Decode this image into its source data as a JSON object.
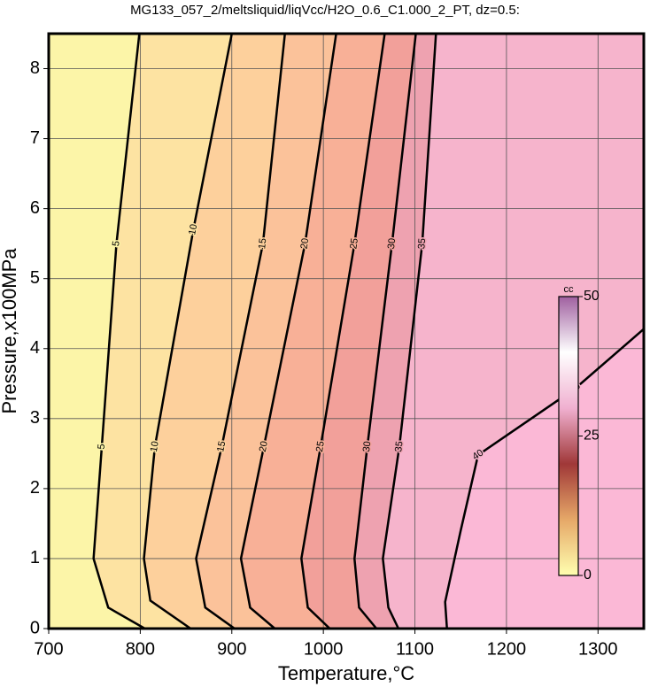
{
  "chart_data": {
    "type": "contour",
    "title": "MG133_057_2/meltsliquid/liqVcc/H2O_0.6_C1.000_2_PT, dz=0.5:",
    "xlabel": "Temperature,°C",
    "ylabel": "Pressure,x100MPa",
    "xlim": [
      700,
      1350
    ],
    "ylim": [
      0,
      8.5
    ],
    "xticks": [
      700,
      800,
      900,
      1000,
      1100,
      1200,
      1300
    ],
    "yticks": [
      0,
      1,
      2,
      3,
      4,
      5,
      6,
      7,
      8
    ],
    "grid": true,
    "band_colors": [
      "#fcf5a8",
      "#fde3a2",
      "#fdd09c",
      "#fbc29a",
      "#f8b097",
      "#f2a09a",
      "#eea2b0",
      "#f6b4cc",
      "#fbb8d6"
    ],
    "contours": [
      {
        "level": 5,
        "x": [
          805,
          765,
          749,
          758,
          774,
          799
        ],
        "y": [
          0,
          0.3,
          1,
          2.6,
          5.5,
          8.5
        ]
      },
      {
        "level": 10,
        "x": [
          855,
          811,
          804,
          816,
          858,
          900
        ],
        "y": [
          0,
          0.4,
          1,
          2.6,
          5.7,
          8.5
        ]
      },
      {
        "level": 15,
        "x": [
          903,
          871,
          861,
          889,
          934,
          958
        ],
        "y": [
          0,
          0.3,
          1,
          2.6,
          5.5,
          8.5
        ]
      },
      {
        "level": 20,
        "x": [
          947,
          920,
          910,
          935,
          980,
          1014
        ],
        "y": [
          0,
          0.3,
          1,
          2.6,
          5.5,
          8.5
        ]
      },
      {
        "level": 25,
        "x": [
          1007,
          983,
          976,
          997,
          1034,
          1067
        ],
        "y": [
          0,
          0.3,
          1,
          2.6,
          5.5,
          8.5
        ]
      },
      {
        "level": 30,
        "x": [
          1058,
          1039,
          1034,
          1048,
          1075,
          1101
        ],
        "y": [
          0,
          0.3,
          1,
          2.6,
          5.5,
          8.5
        ]
      },
      {
        "level": 35,
        "x": [
          1082,
          1071,
          1065,
          1083,
          1108,
          1123
        ],
        "y": [
          0,
          0.3,
          1,
          2.6,
          5.5,
          8.5
        ]
      },
      {
        "level": 40,
        "x": [
          1135,
          1133,
          1150,
          1169,
          1275,
          1350
        ],
        "y": [
          0,
          0.38,
          1.4,
          2.48,
          3.43,
          4.28
        ]
      }
    ],
    "colorbar": {
      "label": "cc",
      "lim": [
        0,
        50
      ],
      "ticks": [
        0,
        25,
        50
      ],
      "colors": [
        "#ffffb0",
        "#e6a868",
        "#a03838",
        "#f0b0d0",
        "#ffffff",
        "#a060a0"
      ]
    }
  }
}
